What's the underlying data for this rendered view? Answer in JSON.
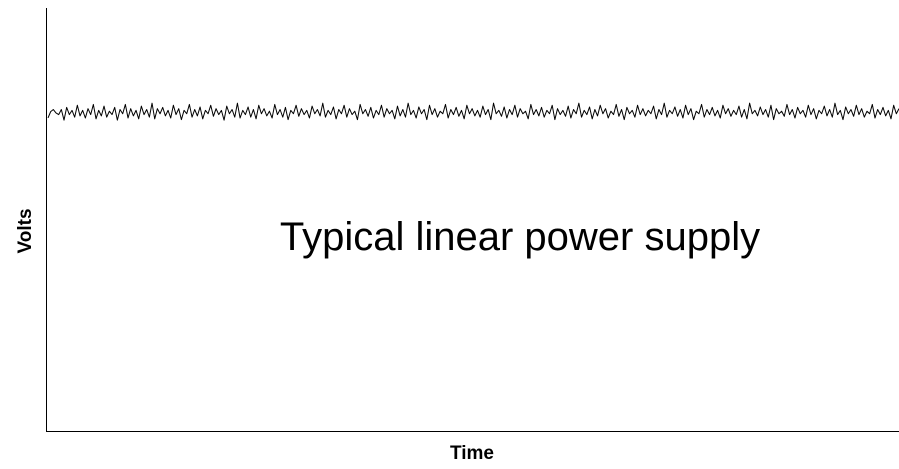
{
  "chart_data": {
    "type": "line",
    "title": "",
    "xlabel": "Time",
    "ylabel": "Volts",
    "annotation": "Typical linear power supply",
    "grid": false,
    "legend": "none",
    "series": [
      {
        "values": [
          0.74,
          0.755,
          0.76,
          0.752,
          0.748,
          0.76,
          0.735,
          0.765,
          0.748,
          0.758,
          0.742,
          0.77,
          0.745,
          0.758,
          0.74,
          0.762,
          0.748,
          0.772,
          0.738,
          0.758,
          0.745,
          0.768,
          0.742,
          0.756,
          0.748,
          0.765,
          0.735,
          0.76,
          0.75,
          0.772,
          0.74,
          0.762,
          0.745,
          0.758,
          0.738,
          0.768,
          0.748,
          0.76,
          0.742,
          0.775,
          0.738,
          0.762,
          0.75,
          0.765,
          0.745,
          0.758,
          0.74,
          0.77,
          0.748,
          0.762,
          0.736,
          0.758,
          0.75,
          0.772,
          0.742,
          0.76,
          0.745,
          0.766,
          0.738,
          0.758,
          0.75,
          0.77,
          0.744,
          0.762,
          0.748,
          0.758,
          0.735,
          0.768,
          0.75,
          0.76,
          0.742,
          0.775,
          0.74,
          0.758,
          0.748,
          0.766,
          0.742,
          0.76,
          0.738,
          0.77,
          0.75,
          0.762,
          0.745,
          0.756,
          0.74,
          0.772,
          0.748,
          0.76,
          0.742,
          0.765,
          0.736,
          0.758,
          0.75,
          0.77,
          0.744,
          0.762,
          0.748,
          0.758,
          0.74,
          0.768,
          0.75,
          0.76,
          0.745,
          0.775,
          0.742,
          0.758,
          0.748,
          0.766,
          0.738,
          0.76,
          0.75,
          0.77,
          0.742,
          0.762,
          0.748,
          0.756,
          0.736,
          0.772,
          0.75,
          0.76,
          0.744,
          0.765,
          0.74,
          0.758,
          0.748,
          0.77,
          0.742,
          0.762,
          0.75,
          0.758,
          0.738,
          0.768,
          0.745,
          0.76,
          0.742,
          0.775,
          0.748,
          0.758,
          0.74,
          0.766,
          0.75,
          0.76,
          0.736,
          0.77,
          0.748,
          0.762,
          0.742,
          0.756,
          0.75,
          0.772,
          0.74,
          0.76,
          0.748,
          0.765,
          0.744,
          0.758,
          0.738,
          0.77,
          0.75,
          0.762,
          0.745,
          0.758,
          0.742,
          0.768,
          0.748,
          0.76,
          0.736,
          0.775,
          0.75,
          0.758,
          0.744,
          0.766,
          0.74,
          0.76,
          0.748,
          0.77,
          0.742,
          0.762,
          0.75,
          0.756,
          0.738,
          0.772,
          0.748,
          0.76,
          0.745,
          0.765,
          0.742,
          0.758,
          0.75,
          0.77,
          0.736,
          0.762,
          0.748,
          0.758,
          0.744,
          0.768,
          0.74,
          0.76,
          0.75,
          0.775,
          0.742,
          0.758,
          0.748,
          0.766,
          0.738,
          0.76,
          0.745,
          0.77,
          0.75,
          0.762,
          0.74,
          0.756,
          0.748,
          0.772,
          0.744,
          0.76,
          0.736,
          0.765,
          0.75,
          0.758,
          0.742,
          0.77,
          0.748,
          0.762,
          0.745,
          0.758,
          0.75,
          0.768,
          0.738,
          0.76,
          0.748,
          0.775,
          0.742,
          0.758,
          0.75,
          0.766,
          0.744,
          0.76,
          0.74,
          0.77,
          0.748,
          0.762,
          0.736,
          0.756,
          0.75,
          0.772,
          0.742,
          0.76,
          0.748,
          0.765,
          0.745,
          0.758,
          0.74,
          0.77,
          0.75,
          0.762,
          0.744,
          0.758,
          0.748,
          0.768,
          0.742,
          0.76,
          0.738,
          0.775,
          0.75,
          0.758,
          0.745,
          0.766,
          0.748,
          0.76,
          0.742,
          0.77,
          0.736,
          0.762,
          0.75,
          0.756,
          0.744,
          0.772,
          0.748,
          0.76,
          0.74,
          0.765,
          0.75,
          0.758,
          0.742,
          0.77,
          0.748,
          0.762,
          0.738,
          0.758,
          0.75,
          0.768,
          0.745,
          0.76,
          0.742,
          0.775,
          0.748,
          0.758,
          0.736,
          0.766,
          0.75,
          0.76,
          0.744,
          0.77,
          0.748,
          0.762,
          0.742,
          0.756,
          0.75,
          0.772,
          0.74,
          0.76,
          0.748,
          0.765,
          0.745,
          0.758,
          0.738,
          0.77,
          0.75,
          0.762
        ]
      }
    ]
  }
}
